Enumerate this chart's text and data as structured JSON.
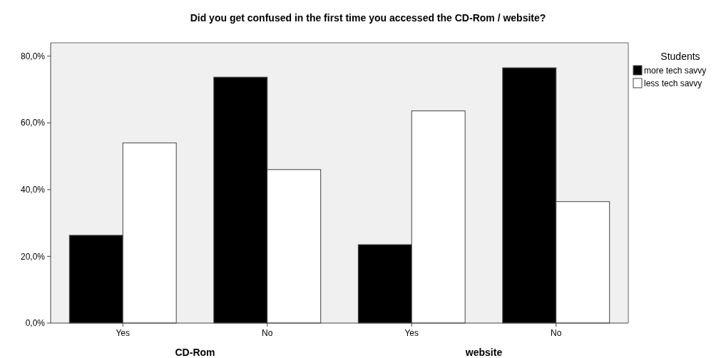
{
  "chart_data": [
    {
      "type": "bar",
      "title": "Did you get confused in the first time you accessed the CD-Rom / website?",
      "xlabel": "CD-Rom",
      "categories": [
        "Yes",
        "No"
      ],
      "series": [
        {
          "color": "#000000",
          "values": [
            26.3,
            73.7
          ]
        },
        {
          "color": "#ffffff",
          "values": [
            54.0,
            46.0
          ]
        }
      ],
      "ylim": [
        0,
        84
      ],
      "yticks": [
        {
          "value": 0,
          "label": "0,0%"
        },
        {
          "value": 20,
          "label": "20,0%"
        },
        {
          "value": 40,
          "label": "40,0%"
        },
        {
          "value": 60,
          "label": "60,0%"
        },
        {
          "value": 80,
          "label": "80,0%"
        }
      ],
      "grid": false,
      "legend": false
    },
    {
      "type": "bar",
      "xlabel": "website",
      "categories": [
        "Yes",
        "No"
      ],
      "legend_title": "Students",
      "series": [
        {
          "name": "more tech savvy",
          "color": "#000000",
          "values": [
            23.5,
            76.5
          ]
        },
        {
          "name": "less tech savvy",
          "color": "#ffffff",
          "values": [
            63.6,
            36.4
          ]
        }
      ],
      "ylim": [
        0,
        84
      ],
      "tick_labels": "x",
      "grid": false,
      "legend": "right"
    }
  ]
}
